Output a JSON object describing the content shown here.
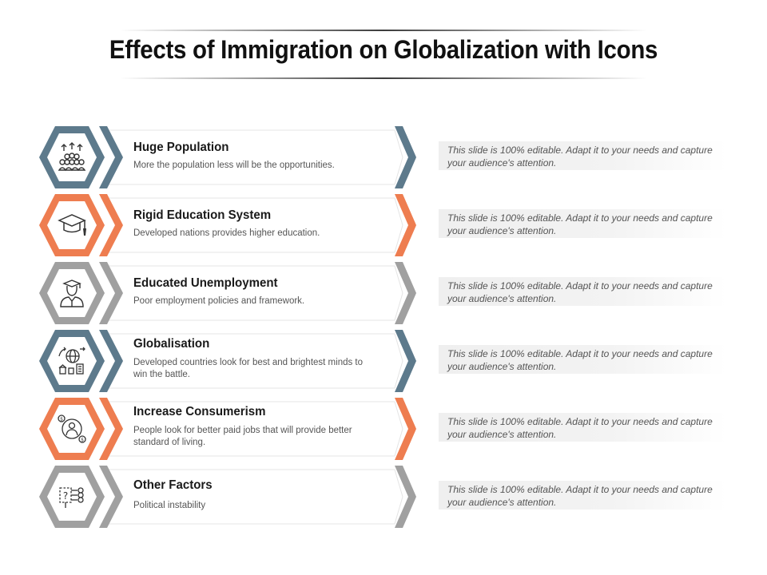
{
  "title": "Effects of Immigration on Globalization with Icons",
  "colors": {
    "slate": "#5d7a8c",
    "orange": "#ee7d50",
    "gray": "#a0a0a0"
  },
  "items": [
    {
      "title": "Huge Population",
      "description": "More the population less will be the opportunities.",
      "color": "#5d7a8c",
      "icon": "population-icon",
      "note": "This slide is 100% editable. Adapt it to your needs and capture your audience's attention."
    },
    {
      "title": "Rigid Education System",
      "description": "Developed nations provides higher education.",
      "color": "#ee7d50",
      "icon": "graduation-cap-icon",
      "note": "This slide is 100% editable. Adapt it to your needs and capture your audience's attention."
    },
    {
      "title": "Educated Unemployment",
      "description": "Poor employment policies and framework.",
      "color": "#a0a0a0",
      "icon": "graduate-person-icon",
      "note": "This slide is 100% editable. Adapt it to your needs and capture your audience's attention."
    },
    {
      "title": "Globalisation",
      "description": "Developed countries look for best and brightest minds to win the battle.",
      "color": "#5d7a8c",
      "icon": "globe-city-icon",
      "note": "This slide is 100% editable. Adapt it to your needs and capture your audience's attention."
    },
    {
      "title": "Increase Consumerism",
      "description": "People look for better paid jobs that will provide better standard of living.",
      "color": "#ee7d50",
      "icon": "consumer-money-icon",
      "note": "This slide is 100% editable. Adapt it to your needs and capture your audience's attention."
    },
    {
      "title": "Other Factors",
      "description": "Political instability",
      "color": "#a0a0a0",
      "icon": "question-flow-icon",
      "note": "This slide is 100% editable. Adapt it to your needs and capture your audience's attention."
    }
  ]
}
